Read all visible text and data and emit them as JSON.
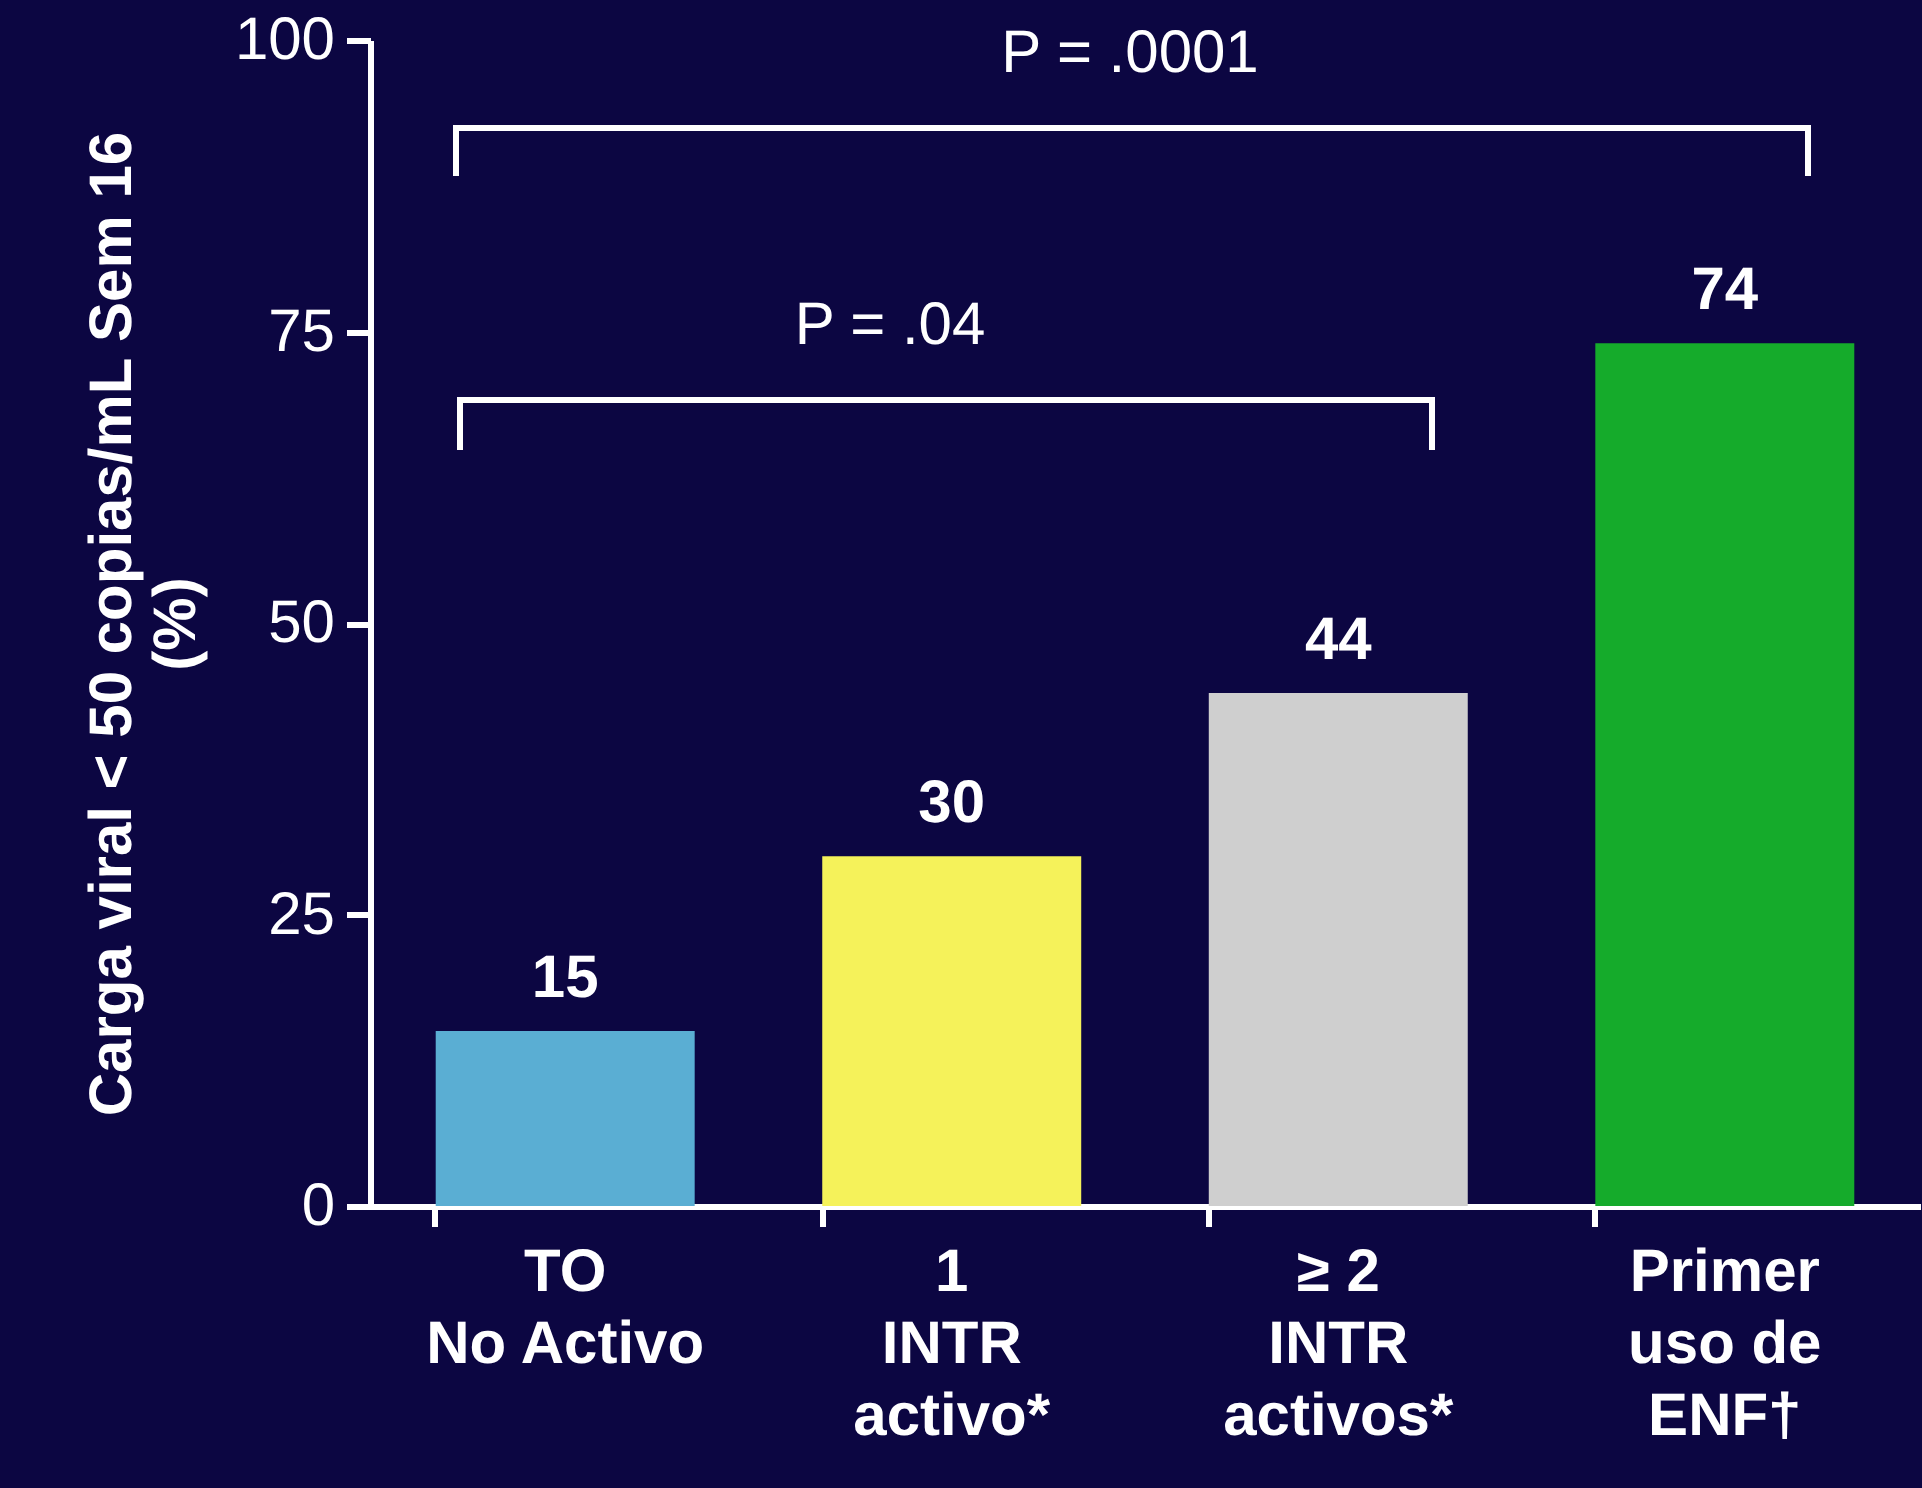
{
  "chart_data": {
    "type": "bar",
    "ylabel": "Carga viral < 50 copias/mL Sem 16\n(%)",
    "categories": [
      "TO\nNo Activo",
      "1\nINTR\nactivo*",
      "≥ 2\nINTR\nactivos*",
      "Primer\nuso de\nENF†"
    ],
    "values": [
      15,
      30,
      44,
      74
    ],
    "colors": [
      "#5aaed3",
      "#f5f25a",
      "#cfcfcf",
      "#15ab2b"
    ],
    "ylim": [
      0,
      100
    ],
    "yticks": [
      0,
      25,
      50,
      75,
      100
    ],
    "data_labels": true,
    "grid": false,
    "annotations": [
      "P = .0001",
      "P = .04"
    ]
  }
}
